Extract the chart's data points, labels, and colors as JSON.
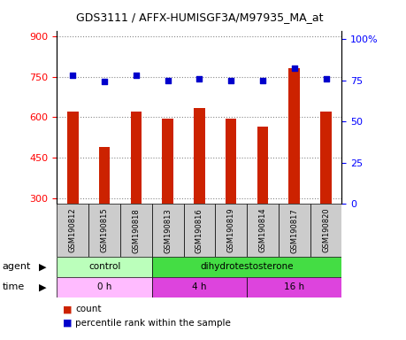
{
  "title": "GDS3111 / AFFX-HUMISGF3A/M97935_MA_at",
  "samples": [
    "GSM190812",
    "GSM190815",
    "GSM190818",
    "GSM190813",
    "GSM190816",
    "GSM190819",
    "GSM190814",
    "GSM190817",
    "GSM190820"
  ],
  "counts": [
    620,
    490,
    620,
    595,
    635,
    595,
    565,
    780,
    620
  ],
  "percentile_ranks": [
    78,
    74,
    78,
    75,
    76,
    75,
    75,
    82,
    76
  ],
  "ylim_left": [
    280,
    920
  ],
  "ylim_right": [
    0,
    105
  ],
  "yticks_left": [
    300,
    450,
    600,
    750,
    900
  ],
  "yticks_right": [
    0,
    25,
    50,
    75,
    100
  ],
  "ytick_labels_right": [
    "0",
    "25",
    "50",
    "75",
    "100%"
  ],
  "bar_color": "#cc2200",
  "dot_color": "#0000cc",
  "agent_groups": [
    {
      "label": "control",
      "start": 0,
      "end": 3,
      "color": "#bbffbb"
    },
    {
      "label": "dihydrotestosterone",
      "start": 3,
      "end": 9,
      "color": "#44dd44"
    }
  ],
  "time_groups": [
    {
      "label": "0 h",
      "start": 0,
      "end": 3,
      "color": "#ffbbff"
    },
    {
      "label": "4 h",
      "start": 3,
      "end": 6,
      "color": "#dd44dd"
    },
    {
      "label": "16 h",
      "start": 6,
      "end": 9,
      "color": "#dd44dd"
    }
  ],
  "legend_count_color": "#cc2200",
  "legend_dot_color": "#0000cc",
  "hgrid_color": "#888888",
  "sample_bg_color": "#cccccc",
  "background_color": "#ffffff",
  "bar_width": 0.35
}
